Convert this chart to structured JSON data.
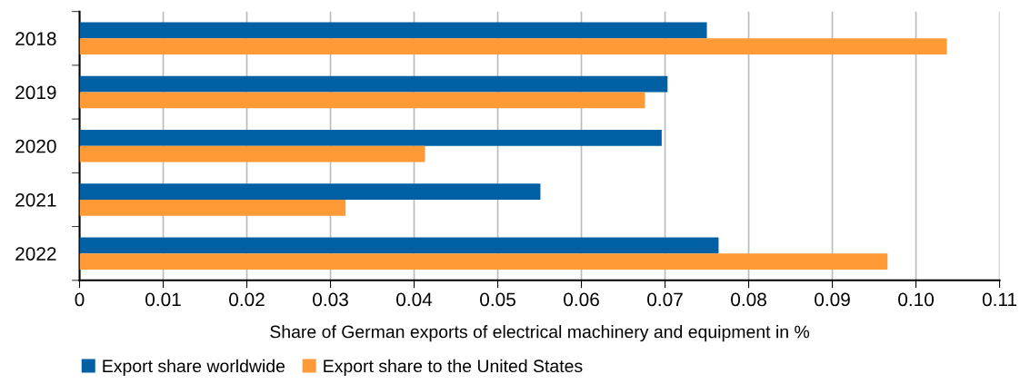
{
  "chart_data": {
    "type": "bar",
    "orientation": "horizontal",
    "xlabel": "Share of German exports of electrical machinery and equipment in %",
    "categories": [
      "2018",
      "2019",
      "2020",
      "2021",
      "2022"
    ],
    "series": [
      {
        "name": "Export share worldwide",
        "color": "#0060a3",
        "values": [
          0.075,
          0.0703,
          0.0696,
          0.0551,
          0.0764
        ]
      },
      {
        "name": "Export share to the United States",
        "color": "#ff9a37",
        "values": [
          0.1037,
          0.0676,
          0.0413,
          0.0318,
          0.0966
        ]
      }
    ],
    "xlim": [
      0,
      0.11
    ],
    "xticks": [
      0,
      0.01,
      0.02,
      0.03,
      0.04,
      0.05,
      0.06,
      0.07,
      0.08,
      0.09,
      {
        "value": 0.1,
        "label": "0.10"
      },
      0.11
    ],
    "grid": "x",
    "legend": "bottom left"
  }
}
